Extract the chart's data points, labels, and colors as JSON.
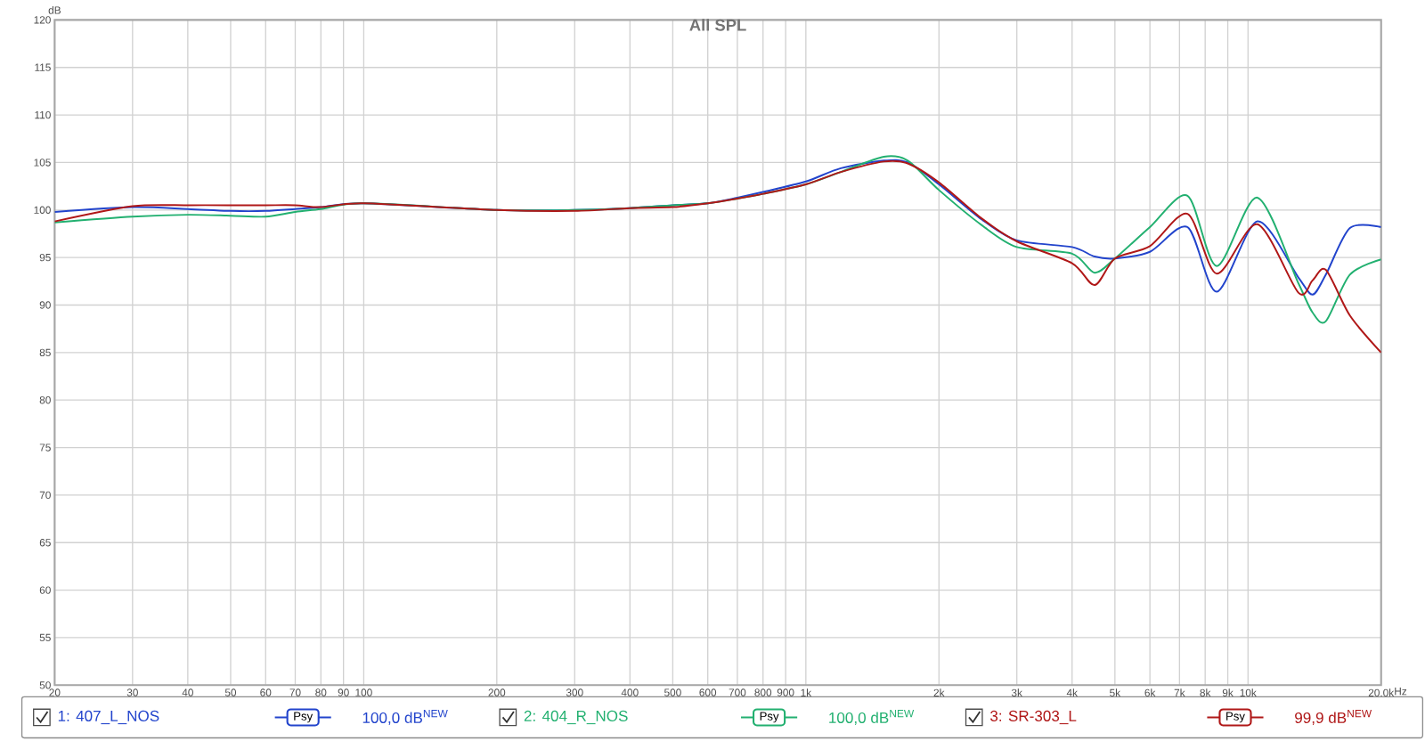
{
  "chart_data": {
    "type": "line",
    "title": "All SPL",
    "xlabel": "Hz",
    "ylabel": "dB",
    "log": "x",
    "grid": true,
    "legend": "bottom",
    "marker": "none",
    "line_style": "solid",
    "xlim": [
      20,
      20000
    ],
    "ylim": [
      50,
      120
    ],
    "xticks": [
      20,
      30,
      40,
      50,
      60,
      70,
      80,
      90,
      100,
      200,
      300,
      400,
      500,
      600,
      700,
      800,
      900,
      {
        "value": 1000,
        "label": "1k"
      },
      {
        "value": 2000,
        "label": "2k"
      },
      {
        "value": 3000,
        "label": "3k"
      },
      {
        "value": 4000,
        "label": "4k"
      },
      {
        "value": 5000,
        "label": "5k"
      },
      {
        "value": 6000,
        "label": "6k"
      },
      {
        "value": 7000,
        "label": "7k"
      },
      {
        "value": 8000,
        "label": "8k"
      },
      {
        "value": 9000,
        "label": "9k"
      },
      {
        "value": 10000,
        "label": "10k"
      },
      {
        "value": 20000,
        "label": "20.0k"
      }
    ],
    "yticks": [
      50,
      55,
      60,
      65,
      70,
      75,
      80,
      85,
      90,
      95,
      100,
      105,
      110,
      115,
      120
    ],
    "x": [
      20,
      30,
      40,
      50,
      60,
      70,
      80,
      100,
      200,
      300,
      400,
      500,
      600,
      700,
      800,
      1000,
      1200,
      1500,
      1700,
      2000,
      2500,
      3000,
      4000,
      4500,
      5000,
      6000,
      7300,
      8500,
      10500,
      13000,
      14000,
      15000,
      17000,
      20000
    ],
    "series": [
      {
        "name": "1: 407_L_NOS",
        "color": "#2244cc",
        "values": [
          99.8,
          100.3,
          100.1,
          99.9,
          99.9,
          100.1,
          100.3,
          100.7,
          100.0,
          100.0,
          100.2,
          100.5,
          100.7,
          101.3,
          101.9,
          103.0,
          104.4,
          105.2,
          105.0,
          102.7,
          99.0,
          96.8,
          96.1,
          95.1,
          94.9,
          95.6,
          98.2,
          91.4,
          98.8,
          92.9,
          91.1,
          93.2,
          98.1,
          98.2
        ]
      },
      {
        "name": "2: 404_R_NOS",
        "color": "#22b070",
        "values": [
          98.7,
          99.3,
          99.5,
          99.4,
          99.3,
          99.8,
          100.1,
          100.7,
          100.0,
          100.0,
          100.2,
          100.5,
          100.7,
          101.2,
          101.7,
          102.7,
          104.0,
          105.6,
          105.2,
          102.1,
          98.4,
          96.1,
          95.4,
          93.4,
          94.9,
          98.2,
          101.5,
          94.1,
          101.3,
          92.3,
          89.2,
          88.3,
          93.2,
          94.8
        ]
      },
      {
        "name": "3: SR-303_L",
        "color": "#b01818",
        "values": [
          98.8,
          100.4,
          100.5,
          100.5,
          100.5,
          100.5,
          100.3,
          100.7,
          100.0,
          99.9,
          100.2,
          100.3,
          100.7,
          101.2,
          101.7,
          102.7,
          104.0,
          105.1,
          104.9,
          102.9,
          99.1,
          96.7,
          94.4,
          92.1,
          94.9,
          96.2,
          99.6,
          93.3,
          98.5,
          91.3,
          92.6,
          93.7,
          88.9,
          85.0
        ]
      }
    ],
    "annotations": [
      "Psy",
      "100,0 dB$^{NEW}$",
      "Psy",
      "100,0 dB$^{NEW}$",
      "Psy",
      "99,9 dB$^{NEW}$"
    ]
  }
}
